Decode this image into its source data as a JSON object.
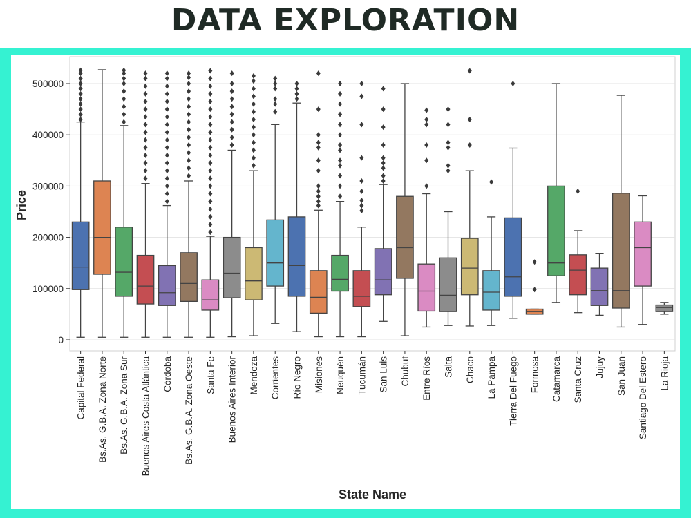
{
  "header": {
    "title": "DATA EXPLORATION"
  },
  "colors": {
    "frame": "#35f2d2",
    "title": "#1f2a25",
    "grid": "#e3e3e3",
    "box_stroke": "#444444"
  },
  "chart_data": {
    "type": "box",
    "xlabel": "State Name",
    "ylabel": "Price",
    "ylim": [
      0,
      550000
    ],
    "yticks": [
      0,
      100000,
      200000,
      300000,
      400000,
      500000
    ],
    "ytick_labels": [
      "0",
      "100000",
      "200000",
      "300000",
      "400000",
      "500000"
    ],
    "grid": "horizontal",
    "categories": [
      {
        "name": "Capital Federal",
        "color": "#4c72b0",
        "min": 5000,
        "q1": 98000,
        "median": 142000,
        "q3": 230000,
        "max": 425000,
        "outliers": [
          430000,
          440000,
          450000,
          460000,
          470000,
          480000,
          490000,
          500000,
          510000,
          520000,
          526000
        ]
      },
      {
        "name": "Bs.As. G.B.A. Zona Norte",
        "color": "#dd8452",
        "min": 5000,
        "q1": 128000,
        "median": 200000,
        "q3": 310000,
        "max": 527000,
        "outliers": []
      },
      {
        "name": "Bs.As. G.B.A. Zona Sur",
        "color": "#55a868",
        "min": 5000,
        "q1": 85000,
        "median": 132000,
        "q3": 220000,
        "max": 418000,
        "outliers": [
          425000,
          440000,
          455000,
          470000,
          485000,
          500000,
          510000,
          520000,
          526000
        ]
      },
      {
        "name": "Buenos Aires Costa Atlántica",
        "color": "#c44e52",
        "min": 5000,
        "q1": 70000,
        "median": 105000,
        "q3": 165000,
        "max": 305000,
        "outliers": [
          315000,
          330000,
          345000,
          360000,
          375000,
          390000,
          405000,
          420000,
          435000,
          450000,
          465000,
          480000,
          495000,
          510000,
          520000
        ]
      },
      {
        "name": "Córdoba",
        "color": "#8172b3",
        "min": 5000,
        "q1": 67000,
        "median": 92000,
        "q3": 145000,
        "max": 262000,
        "outliers": [
          270000,
          285000,
          300000,
          315000,
          330000,
          345000,
          360000,
          375000,
          390000,
          405000,
          420000,
          435000,
          450000,
          465000,
          480000,
          495000,
          510000,
          520000
        ]
      },
      {
        "name": "Bs.As. G.B.A. Zona Oeste",
        "color": "#937860",
        "min": 5000,
        "q1": 75000,
        "median": 110000,
        "q3": 170000,
        "max": 310000,
        "outliers": [
          320000,
          335000,
          350000,
          365000,
          380000,
          395000,
          410000,
          425000,
          440000,
          455000,
          470000,
          485000,
          500000,
          512000,
          520000
        ]
      },
      {
        "name": "Santa Fe",
        "color": "#da8bc3",
        "min": 5000,
        "q1": 58000,
        "median": 78000,
        "q3": 117000,
        "max": 202000,
        "outliers": [
          210000,
          225000,
          240000,
          255000,
          270000,
          285000,
          300000,
          315000,
          330000,
          345000,
          360000,
          375000,
          390000,
          405000,
          420000,
          435000,
          450000,
          465000,
          480000,
          495000,
          510000,
          525000
        ]
      },
      {
        "name": "Buenos Aires Interior",
        "color": "#8c8c8c",
        "min": 6000,
        "q1": 82000,
        "median": 130000,
        "q3": 200000,
        "max": 370000,
        "outliers": [
          380000,
          395000,
          410000,
          425000,
          440000,
          455000,
          470000,
          485000,
          500000,
          520000
        ]
      },
      {
        "name": "Mendoza",
        "color": "#ccb974",
        "min": 8000,
        "q1": 78000,
        "median": 115000,
        "q3": 180000,
        "max": 330000,
        "outliers": [
          340000,
          355000,
          370000,
          385000,
          400000,
          415000,
          430000,
          445000,
          460000,
          475000,
          490000,
          505000,
          515000
        ]
      },
      {
        "name": "Corrientes",
        "color": "#64b5cd",
        "min": 32000,
        "q1": 105000,
        "median": 150000,
        "q3": 234000,
        "max": 420000,
        "outliers": [
          445000,
          460000,
          470000,
          490000,
          500000,
          510000
        ]
      },
      {
        "name": "Río Negro",
        "color": "#4c72b0",
        "min": 16000,
        "q1": 85000,
        "median": 145000,
        "q3": 240000,
        "max": 462000,
        "outliers": [
          470000,
          480000,
          490000,
          500000
        ]
      },
      {
        "name": "Misiones",
        "color": "#dd8452",
        "min": 6000,
        "q1": 52000,
        "median": 83000,
        "q3": 135000,
        "max": 253000,
        "outliers": [
          262000,
          270000,
          280000,
          290000,
          300000,
          330000,
          350000,
          375000,
          385000,
          400000,
          450000,
          520000
        ]
      },
      {
        "name": "Neuquén",
        "color": "#55a868",
        "min": 6000,
        "q1": 95000,
        "median": 118000,
        "q3": 165000,
        "max": 270000,
        "outliers": [
          280000,
          300000,
          320000,
          340000,
          350000,
          370000,
          380000,
          400000,
          420000,
          440000,
          460000,
          480000,
          500000
        ]
      },
      {
        "name": "Tucumán",
        "color": "#c44e52",
        "min": 6000,
        "q1": 65000,
        "median": 85000,
        "q3": 135000,
        "max": 220000,
        "outliers": [
          252000,
          262000,
          272000,
          290000,
          310000,
          355000,
          420000,
          475000,
          500000
        ]
      },
      {
        "name": "San Luis",
        "color": "#8172b3",
        "min": 36000,
        "q1": 88000,
        "median": 117000,
        "q3": 178000,
        "max": 303000,
        "outliers": [
          310000,
          320000,
          335000,
          345000,
          355000,
          380000,
          415000,
          450000,
          490000
        ]
      },
      {
        "name": "Chubut",
        "color": "#937860",
        "min": 8000,
        "q1": 120000,
        "median": 180000,
        "q3": 280000,
        "max": 500000,
        "outliers": []
      },
      {
        "name": "Entre Ríos",
        "color": "#da8bc3",
        "min": 25000,
        "q1": 56000,
        "median": 95000,
        "q3": 148000,
        "max": 285000,
        "outliers": [
          300000,
          350000,
          380000,
          420000,
          430000,
          448000
        ]
      },
      {
        "name": "Salta",
        "color": "#8c8c8c",
        "min": 28000,
        "q1": 55000,
        "median": 87000,
        "q3": 160000,
        "max": 250000,
        "outliers": [
          330000,
          340000,
          375000,
          385000,
          420000,
          450000
        ]
      },
      {
        "name": "Chaco",
        "color": "#ccb974",
        "min": 27000,
        "q1": 88000,
        "median": 140000,
        "q3": 198000,
        "max": 330000,
        "outliers": [
          380000,
          430000,
          525000
        ]
      },
      {
        "name": "La Pampa",
        "color": "#64b5cd",
        "min": 28000,
        "q1": 58000,
        "median": 93000,
        "q3": 135000,
        "max": 240000,
        "outliers": [
          308000
        ]
      },
      {
        "name": "Tierra Del Fuego",
        "color": "#4c72b0",
        "min": 42000,
        "q1": 85000,
        "median": 123000,
        "q3": 238000,
        "max": 374000,
        "outliers": [
          500000
        ]
      },
      {
        "name": "Formosa",
        "color": "#dd8452",
        "min": 50000,
        "q1": 50000,
        "median": 55000,
        "q3": 60000,
        "max": 60000,
        "outliers": [
          98000,
          152000
        ]
      },
      {
        "name": "Catamarca",
        "color": "#55a868",
        "min": 73000,
        "q1": 125000,
        "median": 150000,
        "q3": 300000,
        "max": 500000,
        "outliers": []
      },
      {
        "name": "Santa Cruz",
        "color": "#c44e52",
        "min": 53000,
        "q1": 88000,
        "median": 136000,
        "q3": 166000,
        "max": 213000,
        "outliers": [
          290000
        ]
      },
      {
        "name": "Jujuy",
        "color": "#8172b3",
        "min": 48000,
        "q1": 67000,
        "median": 96000,
        "q3": 140000,
        "max": 168000,
        "outliers": []
      },
      {
        "name": "San Juan",
        "color": "#937860",
        "min": 25000,
        "q1": 62000,
        "median": 96000,
        "q3": 286000,
        "max": 477000,
        "outliers": []
      },
      {
        "name": "Santiago Del Estero",
        "color": "#da8bc3",
        "min": 30000,
        "q1": 105000,
        "median": 180000,
        "q3": 230000,
        "max": 281000,
        "outliers": []
      },
      {
        "name": "La Rioja",
        "color": "#8c8c8c",
        "min": 50000,
        "q1": 55000,
        "median": 63000,
        "q3": 68000,
        "max": 73000,
        "outliers": []
      }
    ]
  }
}
